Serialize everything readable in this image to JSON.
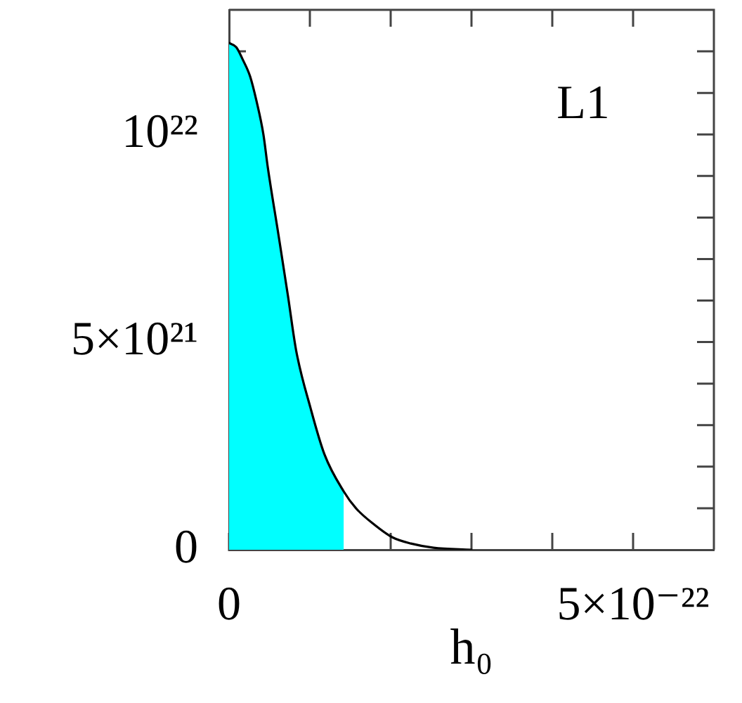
{
  "chart_data": {
    "type": "line",
    "xlabel": "h₀",
    "annotations": [
      "L1"
    ],
    "xlim": [
      0,
      6e-22
    ],
    "xticks": [
      0,
      {
        "value": 1e-22,
        "label": null
      },
      {
        "value": 2e-22,
        "label": null
      },
      {
        "value": 3e-22,
        "label": null
      },
      {
        "value": 4e-22,
        "label": null
      },
      {
        "value": 5e-22,
        "label": "5×10⁻²²"
      }
    ],
    "ylim": [
      0,
      1.3e+22
    ],
    "yticks": [
      0,
      {
        "value": 1e+21,
        "label": null
      },
      {
        "value": 2e+21,
        "label": null
      },
      {
        "value": 3e+21,
        "label": null
      },
      {
        "value": 4e+21,
        "label": null
      },
      {
        "value": 5e+21,
        "label": "5×10²¹"
      },
      {
        "value": 6e+21,
        "label": null
      },
      {
        "value": 7e+21,
        "label": null
      },
      {
        "value": 8e+21,
        "label": null
      },
      {
        "value": 9e+21,
        "label": null
      },
      {
        "value": 1e+22,
        "label": "10²²"
      },
      {
        "value": 1.1e+22,
        "label": null
      },
      {
        "value": 1.2e+22,
        "label": null
      }
    ],
    "grid": false,
    "legend": false,
    "marker": "none",
    "line_style": "solid",
    "series": [
      {
        "type": "area",
        "color": "#00ffff",
        "x": [
          0,
          9e-24,
          1.7e-23,
          2.6e-23,
          3.4e-23,
          4.25e-23,
          4.8e-23,
          6.1e-23,
          7.3e-23,
          8.3e-23,
          1.01e-22,
          1.18e-22,
          1.42e-22
        ],
        "values": [
          1.22e+22,
          1.21e+22,
          1.18e+22,
          1.14e+22,
          1.08e+22,
          1e+22,
          9.2e+21,
          7.6e+21,
          6.1e+21,
          4.8e+21,
          3.4e+21,
          2.3e+21,
          1.4e+21
        ]
      },
      {
        "type": "line",
        "color": "#000000",
        "x": [
          0,
          9e-24,
          1.7e-23,
          2.6e-23,
          3.4e-23,
          4.25e-23,
          4.8e-23,
          6.1e-23,
          7.3e-23,
          8.3e-23,
          1.01e-22,
          1.18e-22,
          1.42e-22,
          1.57e-22,
          1.8e-22,
          2.02e-22,
          2.25e-22,
          2.53e-22,
          3e-22
        ],
        "values": [
          1.22e+22,
          1.21e+22,
          1.18e+22,
          1.14e+22,
          1.08e+22,
          1e+22,
          9.2e+21,
          7.6e+21,
          6.1e+21,
          4.8e+21,
          3.4e+21,
          2.3e+21,
          1.4e+21,
          1e+21,
          6e+20,
          3e+20,
          1.5e+20,
          5e+19,
          0
        ]
      }
    ]
  }
}
